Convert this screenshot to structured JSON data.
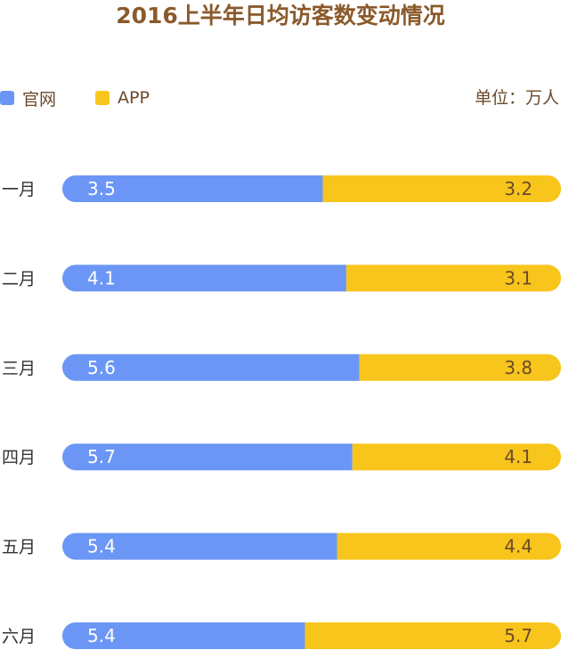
{
  "chart_data": {
    "type": "bar",
    "orientation": "horizontal",
    "stacked": true,
    "normalized": true,
    "title": "2016上半年日均访客数变动情况",
    "unit": "单位：万人",
    "categories": [
      "一月",
      "二月",
      "三月",
      "四月",
      "五月",
      "六月"
    ],
    "series": [
      {
        "name": "官网",
        "color": "#6b96f5",
        "values": [
          3.5,
          4.1,
          5.6,
          5.7,
          5.4,
          5.4
        ]
      },
      {
        "name": "APP",
        "color": "#f8c51c",
        "values": [
          3.2,
          3.1,
          3.8,
          4.1,
          4.4,
          5.7
        ]
      }
    ],
    "legend_position": "top-left",
    "label_colors": {
      "series0": "#ffffff",
      "series1": "#6b4a2a"
    },
    "grid": false
  }
}
